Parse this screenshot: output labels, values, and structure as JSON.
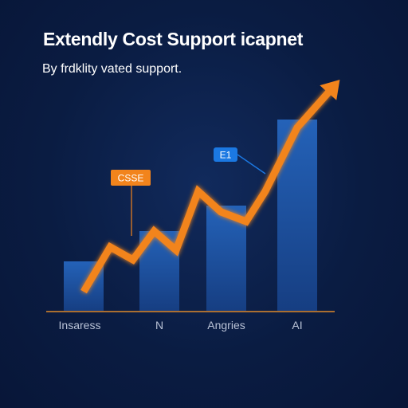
{
  "chart_data": {
    "type": "bar",
    "title": "Extendly Cost Support icapnet",
    "subtitle": "By frdklity vated support.",
    "categories": [
      "Insaress",
      "N",
      "Angries",
      "AI"
    ],
    "values": [
      31,
      50,
      66,
      120
    ],
    "ylim": [
      0,
      140
    ],
    "grid": false,
    "legend": "none",
    "trend_line": {
      "x": [
        0,
        0.35,
        0.65,
        0.93,
        1.25,
        1.58,
        1.92,
        2.28,
        2.55,
        3.0,
        3.6
      ],
      "y": [
        12,
        40,
        32,
        50,
        38,
        75,
        62,
        56,
        75,
        115,
        145
      ]
    },
    "annotations": [
      {
        "text": "CSSE",
        "category": "N",
        "color": "#f2841c"
      },
      {
        "text": "E1",
        "category": "Angries",
        "color": "#1b78e2"
      }
    ],
    "colors": {
      "bar": "#1c4f9c",
      "line": "#f2841c",
      "axis": "#e08a2a",
      "background": "#0b1e45"
    }
  }
}
